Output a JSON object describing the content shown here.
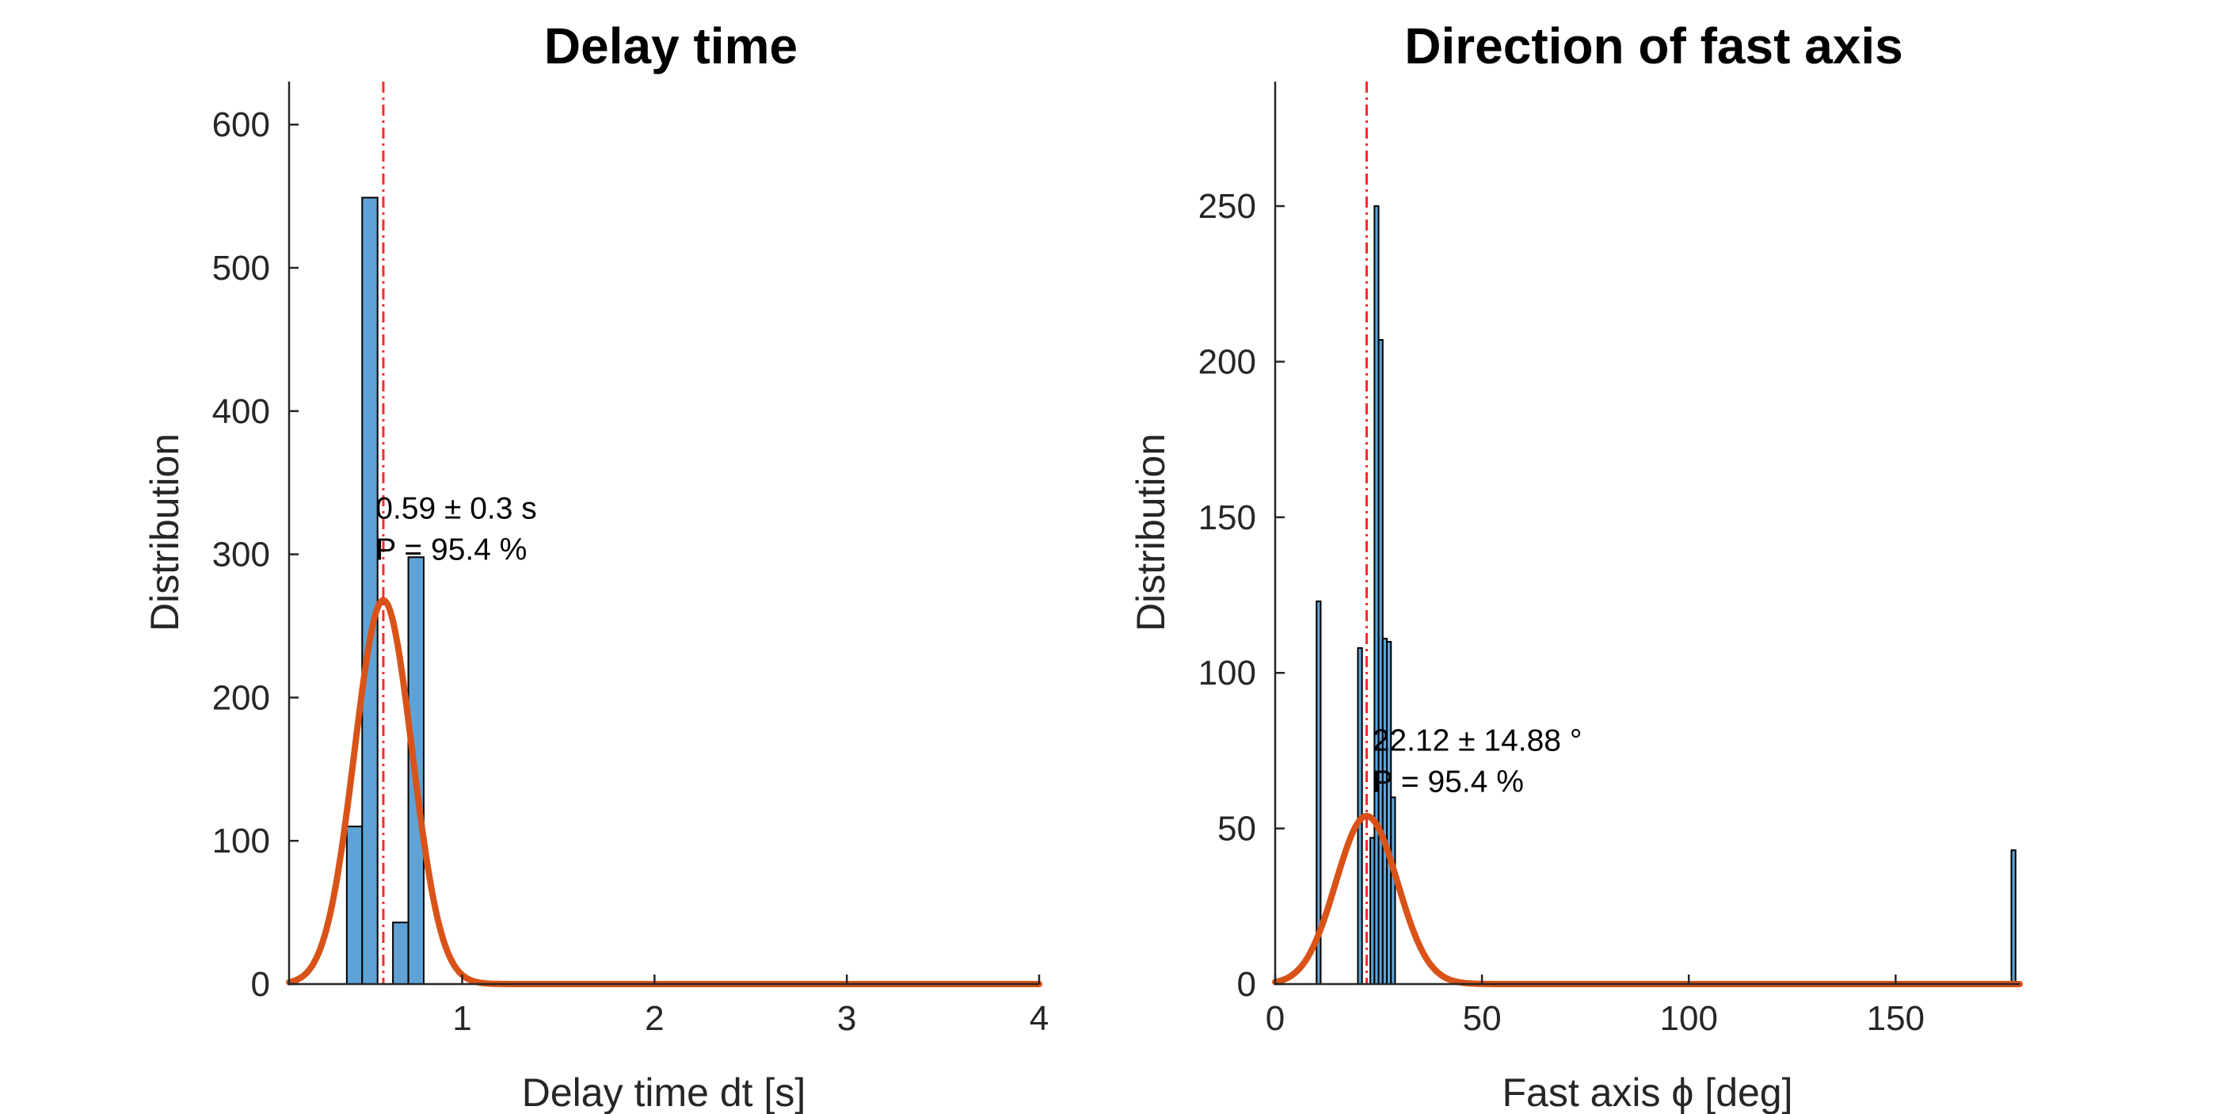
{
  "chart_data": [
    {
      "type": "bar",
      "title": "Delay time",
      "xlabel": "Delay time dt [s]",
      "ylabel": "Distribution",
      "xlim": [
        0.1,
        4
      ],
      "ylim": [
        0,
        630
      ],
      "xticks": [
        1,
        2,
        3,
        4
      ],
      "yticks": [
        0,
        100,
        200,
        300,
        400,
        500,
        600
      ],
      "bar_width": 0.08,
      "bars": [
        {
          "x": 0.44,
          "value": 110
        },
        {
          "x": 0.52,
          "value": 549
        },
        {
          "x": 0.68,
          "value": 43
        },
        {
          "x": 0.76,
          "value": 298
        }
      ],
      "fit": {
        "mean": 0.59,
        "sigma": 0.15,
        "peak": 268
      },
      "mean_line": 0.59,
      "annotation": {
        "line1": "0.59 ± 0.3 s",
        "line2": "P = 95.4 %",
        "x": 0.55,
        "y": 325
      },
      "grid": false
    },
    {
      "type": "bar",
      "title": "Direction of fast axis",
      "xlabel": "Fast axis ϕ [deg]",
      "ylabel": "Distribution",
      "xlim": [
        0,
        180
      ],
      "ylim": [
        0,
        290
      ],
      "xticks": [
        0,
        50,
        100,
        150
      ],
      "yticks": [
        0,
        50,
        100,
        150,
        200,
        250
      ],
      "bar_width": 1,
      "bars": [
        {
          "x": 10.5,
          "value": 123
        },
        {
          "x": 20.5,
          "value": 108
        },
        {
          "x": 23.5,
          "value": 47
        },
        {
          "x": 24.5,
          "value": 250
        },
        {
          "x": 25.5,
          "value": 207
        },
        {
          "x": 26.5,
          "value": 111
        },
        {
          "x": 27.5,
          "value": 110
        },
        {
          "x": 28.5,
          "value": 60
        },
        {
          "x": 178.5,
          "value": 43
        }
      ],
      "fit": {
        "mean": 22.12,
        "sigma": 7.44,
        "peak": 54
      },
      "mean_line": 22.12,
      "annotation": {
        "line1": "22.12 ± 14.88 °",
        "line2": "P = 95.4 %",
        "x": 23.5,
        "y": 75
      },
      "grid": false
    }
  ]
}
